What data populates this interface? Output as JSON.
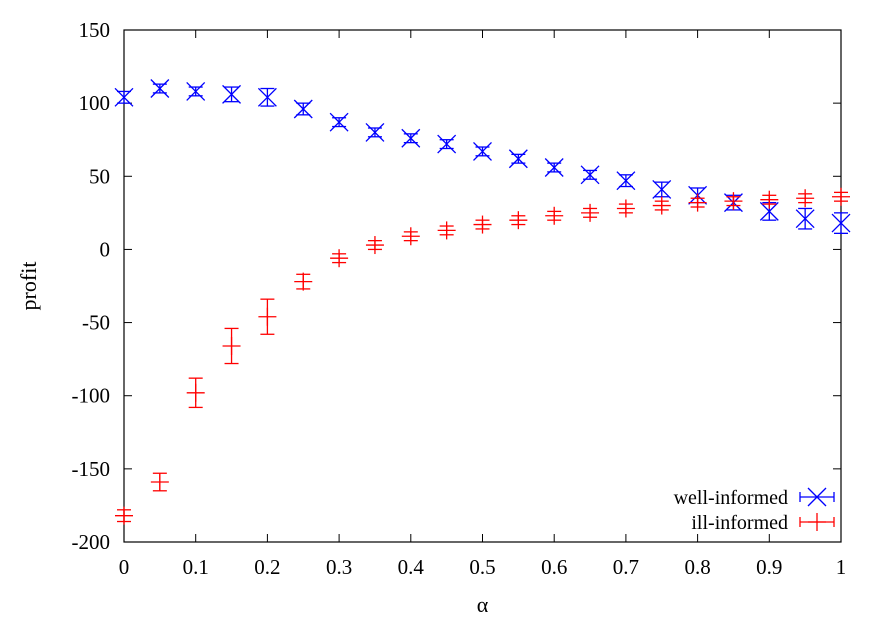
{
  "chart_data": {
    "type": "scatter",
    "title": "",
    "xlabel": "α",
    "ylabel": "profit",
    "xlim": [
      0,
      1
    ],
    "ylim": [
      -200,
      150
    ],
    "x_ticks": [
      "0",
      "0.1",
      "0.2",
      "0.3",
      "0.4",
      "0.5",
      "0.6",
      "0.7",
      "0.8",
      "0.9",
      "1"
    ],
    "y_ticks": [
      "150",
      "100",
      "50",
      "0",
      "-50",
      "-100",
      "-150",
      "-200"
    ],
    "legend_position": "bottom-right",
    "grid": false,
    "x": [
      0,
      0.05,
      0.1,
      0.15,
      0.2,
      0.25,
      0.3,
      0.35,
      0.4,
      0.45,
      0.5,
      0.55,
      0.6,
      0.65,
      0.7,
      0.75,
      0.8,
      0.85,
      0.9,
      0.95,
      1
    ],
    "series": [
      {
        "name": "well-informed",
        "color": "#0000ff",
        "marker": "x-cross",
        "values": [
          104,
          110,
          108,
          106,
          104,
          96,
          87,
          80,
          76,
          72,
          67,
          62,
          56,
          51,
          47,
          41,
          37,
          32,
          26,
          21,
          18
        ],
        "errors": [
          4,
          3,
          3,
          5,
          6,
          4,
          3,
          3,
          3,
          3,
          3,
          3,
          3,
          3,
          4,
          5,
          5,
          5,
          6,
          7,
          7
        ]
      },
      {
        "name": "ill-informed",
        "color": "#ff0000",
        "marker": "plus",
        "values": [
          -182,
          -159,
          -98,
          -66,
          -46,
          -22,
          -6,
          3,
          9,
          13,
          17,
          20,
          23,
          25,
          28,
          30,
          32,
          33,
          34,
          35,
          36
        ],
        "errors": [
          4,
          6,
          10,
          12,
          12,
          5,
          3,
          3,
          3,
          3,
          3,
          3,
          3,
          3,
          3,
          3,
          3,
          3,
          3,
          3,
          3
        ]
      }
    ]
  }
}
